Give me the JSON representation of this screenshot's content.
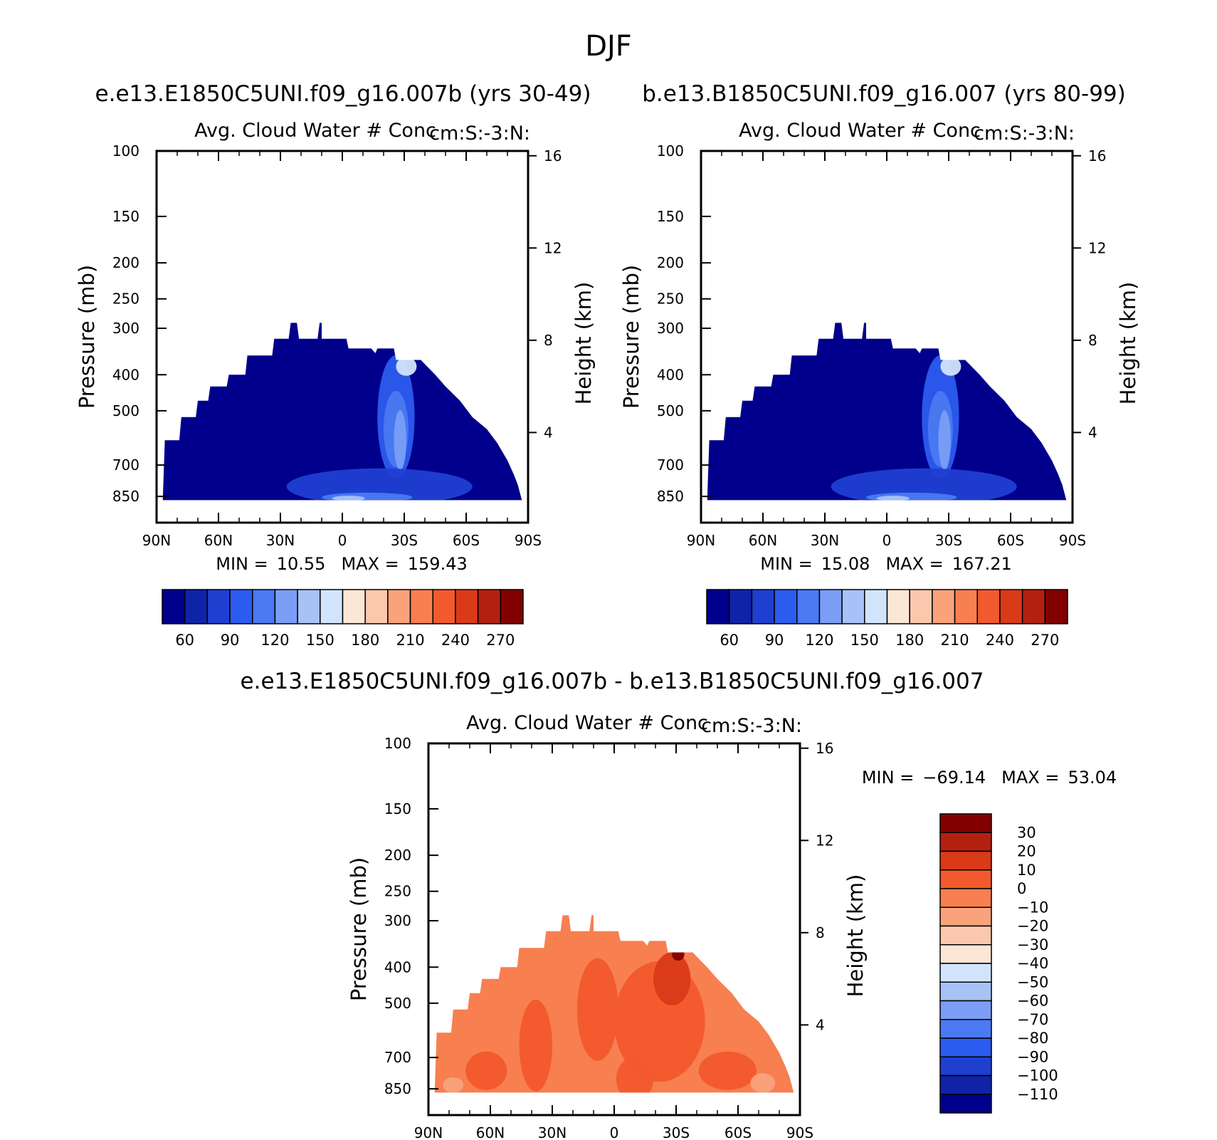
{
  "figure": {
    "title": "DJF",
    "left_case_title": "e.e13.E1850C5UNI.f09_g16.007b (yrs 30-49)",
    "right_case_title": "b.e13.B1850C5UNI.f09_g16.007 (yrs 80-99)",
    "diff_title": "e.e13.E1850C5UNI.f09_g16.007b - b.e13.B1850C5UNI.f09_g16.007"
  },
  "chart_data": [
    {
      "id": "left",
      "type": "heatmap",
      "title": "Avg. Cloud Water # Conc",
      "units": "cm:S:-3:N:",
      "xlabel": "",
      "ylabel": "Pressure (mb)",
      "y2label": "Height (km)",
      "x_ticks": [
        "90N",
        "60N",
        "30N",
        "0",
        "30S",
        "60S",
        "90S"
      ],
      "x_range": [
        90,
        -90
      ],
      "y_ticks": [
        100,
        150,
        200,
        250,
        300,
        400,
        500,
        700,
        850
      ],
      "y_range_mb": [
        100,
        1000
      ],
      "y2_ticks": [
        4,
        8,
        12,
        16
      ],
      "stats": {
        "min_label": "MIN =",
        "min": "10.55",
        "max_label": "MAX =",
        "max": "159.43"
      },
      "colorbar": {
        "orientation": "horizontal",
        "labels": [
          "60",
          "90",
          "120",
          "150",
          "180",
          "210",
          "240",
          "270"
        ],
        "colors": [
          "#00008c",
          "#0f23a8",
          "#1f3fd1",
          "#2c5bef",
          "#4a79f2",
          "#7a9ef5",
          "#a6c2f7",
          "#d2e4fb",
          "#fce7d6",
          "#fbc8ae",
          "#f9a27c",
          "#f77f50",
          "#f25a2d",
          "#d93a18",
          "#b4200f",
          "#820000"
        ]
      },
      "field": {
        "fill": "#00008c",
        "outline": [
          [
            -87,
            870
          ],
          [
            -85,
            790
          ],
          [
            -83,
            740
          ],
          [
            -80,
            680
          ],
          [
            -75,
            610
          ],
          [
            -70,
            560
          ],
          [
            -63,
            520
          ],
          [
            -57,
            470
          ],
          [
            -50,
            430
          ],
          [
            -45,
            400
          ],
          [
            -38,
            365
          ],
          [
            -26,
            365
          ],
          [
            -25,
            340
          ],
          [
            -17,
            340
          ],
          [
            -16,
            350
          ],
          [
            -14,
            340
          ],
          [
            -3,
            340
          ],
          [
            -2,
            320
          ],
          [
            10,
            320
          ],
          [
            10,
            290
          ],
          [
            11,
            290
          ],
          [
            12,
            320
          ],
          [
            21,
            320
          ],
          [
            22,
            290
          ],
          [
            25,
            290
          ],
          [
            26,
            320
          ],
          [
            33,
            320
          ],
          [
            34,
            355
          ],
          [
            46,
            355
          ],
          [
            47,
            400
          ],
          [
            55,
            400
          ],
          [
            56,
            430
          ],
          [
            64,
            430
          ],
          [
            65,
            470
          ],
          [
            70,
            470
          ],
          [
            71,
            520
          ],
          [
            78,
            520
          ],
          [
            79,
            600
          ],
          [
            86,
            600
          ],
          [
            87,
            870
          ]
        ],
        "blobs": [
          {
            "cx": -26,
            "cy": 520,
            "rx": 9,
            "ry": 190,
            "color": "#2c5bef"
          },
          {
            "cx": -26,
            "cy": 560,
            "rx": 6,
            "ry": 130,
            "color": "#4a79f2"
          },
          {
            "cx": -28,
            "cy": 600,
            "rx": 3,
            "ry": 110,
            "color": "#7a9ef5"
          },
          {
            "cx": -31,
            "cy": 380,
            "rx": 5,
            "ry": 22,
            "color": "#d2e4fb"
          },
          {
            "cx": -18,
            "cy": 800,
            "rx": 45,
            "ry": 90,
            "color": "#1f3fd1"
          },
          {
            "cx": -12,
            "cy": 855,
            "rx": 22,
            "ry": 25,
            "color": "#4a79f2"
          },
          {
            "cx": -3,
            "cy": 860,
            "rx": 8,
            "ry": 14,
            "color": "#a6c2f7"
          }
        ]
      }
    },
    {
      "id": "right",
      "type": "heatmap",
      "title": "Avg. Cloud Water # Conc",
      "units": "cm:S:-3:N:",
      "xlabel": "",
      "ylabel": "Pressure (mb)",
      "y2label": "Height (km)",
      "x_ticks": [
        "90N",
        "60N",
        "30N",
        "0",
        "30S",
        "60S",
        "90S"
      ],
      "x_range": [
        90,
        -90
      ],
      "y_ticks": [
        100,
        150,
        200,
        250,
        300,
        400,
        500,
        700,
        850
      ],
      "y_range_mb": [
        100,
        1000
      ],
      "y2_ticks": [
        4,
        8,
        12,
        16
      ],
      "stats": {
        "min_label": "MIN =",
        "min": "15.08",
        "max_label": "MAX =",
        "max": "167.21"
      },
      "colorbar": {
        "orientation": "horizontal",
        "labels": [
          "60",
          "90",
          "120",
          "150",
          "180",
          "210",
          "240",
          "270"
        ],
        "colors": [
          "#00008c",
          "#0f23a8",
          "#1f3fd1",
          "#2c5bef",
          "#4a79f2",
          "#7a9ef5",
          "#a6c2f7",
          "#d2e4fb",
          "#fce7d6",
          "#fbc8ae",
          "#f9a27c",
          "#f77f50",
          "#f25a2d",
          "#d93a18",
          "#b4200f",
          "#820000"
        ]
      },
      "field": {
        "fill": "#00008c",
        "outline": [
          [
            -87,
            870
          ],
          [
            -85,
            790
          ],
          [
            -83,
            740
          ],
          [
            -80,
            680
          ],
          [
            -75,
            610
          ],
          [
            -70,
            560
          ],
          [
            -63,
            520
          ],
          [
            -57,
            470
          ],
          [
            -50,
            430
          ],
          [
            -45,
            400
          ],
          [
            -38,
            365
          ],
          [
            -26,
            365
          ],
          [
            -25,
            340
          ],
          [
            -17,
            340
          ],
          [
            -16,
            350
          ],
          [
            -14,
            340
          ],
          [
            -3,
            340
          ],
          [
            -2,
            320
          ],
          [
            10,
            320
          ],
          [
            10,
            290
          ],
          [
            11,
            290
          ],
          [
            12,
            320
          ],
          [
            21,
            320
          ],
          [
            22,
            290
          ],
          [
            25,
            290
          ],
          [
            26,
            320
          ],
          [
            33,
            320
          ],
          [
            34,
            355
          ],
          [
            46,
            355
          ],
          [
            47,
            400
          ],
          [
            55,
            400
          ],
          [
            56,
            430
          ],
          [
            64,
            430
          ],
          [
            65,
            470
          ],
          [
            70,
            470
          ],
          [
            71,
            520
          ],
          [
            78,
            520
          ],
          [
            79,
            600
          ],
          [
            86,
            600
          ],
          [
            87,
            870
          ]
        ],
        "blobs": [
          {
            "cx": -26,
            "cy": 520,
            "rx": 9,
            "ry": 190,
            "color": "#2c5bef"
          },
          {
            "cx": -26,
            "cy": 560,
            "rx": 6,
            "ry": 130,
            "color": "#4a79f2"
          },
          {
            "cx": -28,
            "cy": 600,
            "rx": 3,
            "ry": 110,
            "color": "#7a9ef5"
          },
          {
            "cx": -31,
            "cy": 380,
            "rx": 5,
            "ry": 22,
            "color": "#d2e4fb"
          },
          {
            "cx": -18,
            "cy": 800,
            "rx": 45,
            "ry": 90,
            "color": "#1f3fd1"
          },
          {
            "cx": -12,
            "cy": 855,
            "rx": 22,
            "ry": 25,
            "color": "#4a79f2"
          },
          {
            "cx": -3,
            "cy": 860,
            "rx": 8,
            "ry": 14,
            "color": "#a6c2f7"
          }
        ]
      }
    },
    {
      "id": "diff",
      "type": "heatmap",
      "title": "Avg. Cloud Water # Conc",
      "units": "cm:S:-3:N:",
      "xlabel": "",
      "ylabel": "Pressure (mb)",
      "y2label": "Height (km)",
      "x_ticks": [
        "90N",
        "60N",
        "30N",
        "0",
        "30S",
        "60S",
        "90S"
      ],
      "x_range": [
        90,
        -90
      ],
      "y_ticks": [
        100,
        150,
        200,
        250,
        300,
        400,
        500,
        700,
        850
      ],
      "y_range_mb": [
        100,
        1000
      ],
      "y2_ticks": [
        4,
        8,
        12,
        16
      ],
      "stats": {
        "min_label": "MIN =",
        "min": "-69.14",
        "max_label": "MAX =",
        "max": "53.04"
      },
      "colorbar": {
        "orientation": "vertical",
        "labels": [
          "30",
          "20",
          "10",
          "0",
          "-10",
          "-20",
          "-30",
          "-40",
          "-50",
          "-60",
          "-70",
          "-80",
          "-90",
          "-100",
          "-110"
        ],
        "colors": [
          "#820000",
          "#b4200f",
          "#d93a18",
          "#f25a2d",
          "#f77f50",
          "#f9a27c",
          "#fbc8ae",
          "#fce7d6",
          "#d2e4fb",
          "#a6c2f7",
          "#7a9ef5",
          "#4a79f2",
          "#2c5bef",
          "#1f3fd1",
          "#0f23a8",
          "#00008c"
        ]
      },
      "field": {
        "fill": "#f77f50",
        "outline": [
          [
            -87,
            870
          ],
          [
            -85,
            790
          ],
          [
            -83,
            740
          ],
          [
            -80,
            680
          ],
          [
            -75,
            610
          ],
          [
            -70,
            560
          ],
          [
            -63,
            520
          ],
          [
            -57,
            470
          ],
          [
            -50,
            430
          ],
          [
            -45,
            400
          ],
          [
            -38,
            365
          ],
          [
            -26,
            365
          ],
          [
            -25,
            340
          ],
          [
            -17,
            340
          ],
          [
            -16,
            350
          ],
          [
            -14,
            340
          ],
          [
            -3,
            340
          ],
          [
            -2,
            320
          ],
          [
            10,
            320
          ],
          [
            10,
            290
          ],
          [
            11,
            290
          ],
          [
            12,
            320
          ],
          [
            21,
            320
          ],
          [
            22,
            290
          ],
          [
            25,
            290
          ],
          [
            26,
            320
          ],
          [
            33,
            320
          ],
          [
            34,
            355
          ],
          [
            46,
            355
          ],
          [
            47,
            400
          ],
          [
            55,
            400
          ],
          [
            56,
            430
          ],
          [
            64,
            430
          ],
          [
            65,
            470
          ],
          [
            70,
            470
          ],
          [
            71,
            520
          ],
          [
            78,
            520
          ],
          [
            79,
            600
          ],
          [
            86,
            600
          ],
          [
            87,
            870
          ]
        ],
        "blobs": [
          {
            "cx": -22,
            "cy": 560,
            "rx": 22,
            "ry": 200,
            "color": "#f25a2d"
          },
          {
            "cx": -28,
            "cy": 430,
            "rx": 9,
            "ry": 70,
            "color": "#d93a18"
          },
          {
            "cx": -31,
            "cy": 370,
            "rx": 3,
            "ry": 14,
            "color": "#820000"
          },
          {
            "cx": 8,
            "cy": 520,
            "rx": 10,
            "ry": 160,
            "color": "#f25a2d"
          },
          {
            "cx": 38,
            "cy": 650,
            "rx": 8,
            "ry": 180,
            "color": "#f25a2d"
          },
          {
            "cx": -55,
            "cy": 760,
            "rx": 14,
            "ry": 90,
            "color": "#f25a2d"
          },
          {
            "cx": -10,
            "cy": 800,
            "rx": 9,
            "ry": 110,
            "color": "#f25a2d"
          },
          {
            "cx": 62,
            "cy": 760,
            "rx": 10,
            "ry": 90,
            "color": "#f25a2d"
          },
          {
            "cx": -72,
            "cy": 820,
            "rx": 6,
            "ry": 50,
            "color": "#f9a27c"
          },
          {
            "cx": 78,
            "cy": 830,
            "rx": 5,
            "ry": 40,
            "color": "#f9a27c"
          }
        ]
      }
    }
  ]
}
